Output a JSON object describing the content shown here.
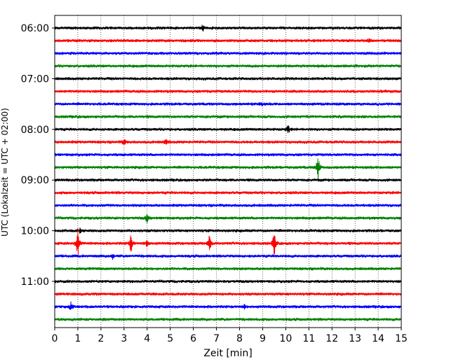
{
  "chart_data": {
    "type": "line",
    "chart_kind": "seismogram-helicorder",
    "xlabel": "Zeit  [min]",
    "ylabel": "UTC (Lokalzeit = UTC + 02:00)",
    "xlim": [
      0,
      15
    ],
    "xticks": [
      0,
      1,
      2,
      3,
      4,
      5,
      6,
      7,
      8,
      9,
      10,
      11,
      12,
      13,
      14,
      15
    ],
    "x_gridlines": "dotted vertical at each minute",
    "y_tick_labels": [
      "06:00",
      "07:00",
      "08:00",
      "09:00",
      "10:00",
      "11:00"
    ],
    "line_interval_minutes": 15,
    "start_time": "06:00",
    "line_color_cycle": [
      "#000000",
      "#ff0000",
      "#0000ff",
      "#008000"
    ],
    "trace_count": 24,
    "events": [
      {
        "trace": 0,
        "minute": 6.4,
        "amp": 0.8
      },
      {
        "trace": 1,
        "minute": 13.6,
        "amp": 0.5
      },
      {
        "trace": 6,
        "minute": 8.9,
        "amp": 0.7
      },
      {
        "trace": 8,
        "minute": 10.1,
        "amp": 1.2
      },
      {
        "trace": 9,
        "minute": 3.0,
        "amp": 0.9
      },
      {
        "trace": 9,
        "minute": 4.8,
        "amp": 0.8
      },
      {
        "trace": 11,
        "minute": 11.4,
        "amp": 3.5
      },
      {
        "trace": 15,
        "minute": 4.0,
        "amp": 1.2
      },
      {
        "trace": 16,
        "minute": 1.1,
        "amp": 0.6
      },
      {
        "trace": 17,
        "minute": 1.0,
        "amp": 4.0
      },
      {
        "trace": 17,
        "minute": 3.3,
        "amp": 2.6
      },
      {
        "trace": 17,
        "minute": 4.0,
        "amp": 1.0
      },
      {
        "trace": 17,
        "minute": 6.7,
        "amp": 2.3
      },
      {
        "trace": 17,
        "minute": 9.5,
        "amp": 3.3
      },
      {
        "trace": 18,
        "minute": 2.5,
        "amp": 0.7
      },
      {
        "trace": 22,
        "minute": 0.7,
        "amp": 1.0
      },
      {
        "trace": 22,
        "minute": 8.2,
        "amp": 0.6
      }
    ]
  }
}
